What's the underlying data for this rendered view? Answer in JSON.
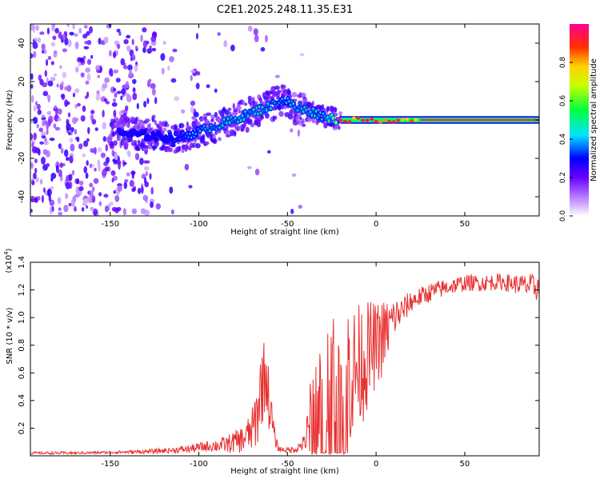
{
  "title": "C2E1.2025.248.11.35.E31",
  "chart_data": [
    {
      "type": "heatmap",
      "xlabel": "Height of straight line (km)",
      "ylabel": "Frequency (Hz)",
      "xlim": [
        -195,
        92
      ],
      "ylim": [
        -50,
        50
      ],
      "xticks": [
        -150,
        -100,
        -50,
        0,
        50
      ],
      "yticks": [
        -40,
        -20,
        0,
        20,
        40
      ],
      "tick_labels_x": [
        "-150",
        "-100",
        "-50",
        "0",
        "50"
      ],
      "tick_labels_y": [
        "-40",
        "-20",
        "0",
        "20",
        "40"
      ],
      "colorbar": {
        "label": "Normalized spectral amplitude",
        "range": [
          0,
          1
        ],
        "ticks": [
          0.0,
          0.2,
          0.4,
          0.6,
          0.8
        ],
        "tick_labels": [
          "0.0",
          "0.2",
          "0.4",
          "0.6",
          "0.8"
        ]
      },
      "ridge": {
        "x": [
          -140,
          -130,
          -120,
          -110,
          -100,
          -90,
          -80,
          -70,
          -60,
          -55,
          -50,
          -45,
          -40,
          -35,
          -30,
          -25,
          -20,
          -10,
          0,
          10,
          20,
          30,
          50,
          70,
          90
        ],
        "freq": [
          -7,
          -8,
          -9,
          -9,
          -6,
          -3,
          0,
          4,
          7,
          10,
          10,
          6,
          5,
          4,
          2,
          1,
          0,
          0,
          0,
          0,
          0,
          0,
          0,
          0,
          0
        ],
        "amplitude": [
          0.25,
          0.3,
          0.3,
          0.35,
          0.45,
          0.5,
          0.5,
          0.5,
          0.5,
          0.45,
          0.45,
          0.5,
          0.5,
          0.5,
          0.45,
          0.6,
          0.8,
          0.8,
          0.8,
          0.85,
          0.9,
          0.95,
          0.95,
          0.95,
          0.95
        ]
      }
    },
    {
      "type": "line",
      "xlabel": "Height of straight line (km)",
      "ylabel": "SNR (10 * v/v)",
      "yscale_label": "(x10",
      "yscale_exp": "4",
      "yscale_close": ")",
      "xlim": [
        -195,
        92
      ],
      "ylim": [
        0,
        1.4
      ],
      "xticks": [
        -150,
        -100,
        -50,
        0,
        50
      ],
      "yticks": [
        0.2,
        0.4,
        0.6,
        0.8,
        1.0,
        1.2,
        1.4
      ],
      "tick_labels_x": [
        "-150",
        "-100",
        "-50",
        "0",
        "50"
      ],
      "tick_labels_y": [
        "0.2",
        "0.4",
        "0.6",
        "0.8",
        "1.0",
        "1.2",
        "1.4"
      ],
      "color": "#e83030",
      "envelope": {
        "x": [
          -195,
          -170,
          -150,
          -130,
          -115,
          -105,
          -95,
          -85,
          -75,
          -70,
          -67,
          -65,
          -62,
          -60,
          -57,
          -55,
          -50,
          -45,
          -40,
          -38,
          -35,
          -32,
          -30,
          -27,
          -25,
          -22,
          -20,
          -18,
          -15,
          -12,
          -10,
          -7,
          -5,
          -2,
          0,
          3,
          5,
          8,
          10,
          15,
          20,
          25,
          30,
          35,
          40,
          50,
          60,
          70,
          80,
          90
        ],
        "base": [
          0.02,
          0.02,
          0.025,
          0.03,
          0.04,
          0.05,
          0.07,
          0.08,
          0.12,
          0.18,
          0.3,
          0.5,
          0.6,
          0.35,
          0.12,
          0.05,
          0.04,
          0.05,
          0.1,
          0.2,
          0.35,
          0.4,
          0.4,
          0.45,
          0.5,
          0.45,
          0.4,
          0.5,
          0.6,
          0.6,
          0.65,
          0.7,
          0.72,
          0.78,
          0.8,
          0.85,
          0.88,
          0.95,
          1.0,
          1.05,
          1.12,
          1.15,
          1.18,
          1.2,
          1.22,
          1.25,
          1.25,
          1.26,
          1.24,
          1.22
        ],
        "spread": [
          0.01,
          0.01,
          0.01,
          0.015,
          0.02,
          0.03,
          0.04,
          0.06,
          0.1,
          0.15,
          0.25,
          0.3,
          0.28,
          0.2,
          0.06,
          0.02,
          0.02,
          0.03,
          0.06,
          0.25,
          0.4,
          0.55,
          0.6,
          0.65,
          0.7,
          0.65,
          0.45,
          0.55,
          0.55,
          0.5,
          0.45,
          0.45,
          0.4,
          0.35,
          0.3,
          0.3,
          0.25,
          0.2,
          0.15,
          0.1,
          0.08,
          0.07,
          0.07,
          0.07,
          0.06,
          0.06,
          0.06,
          0.06,
          0.07,
          0.1
        ]
      }
    }
  ]
}
